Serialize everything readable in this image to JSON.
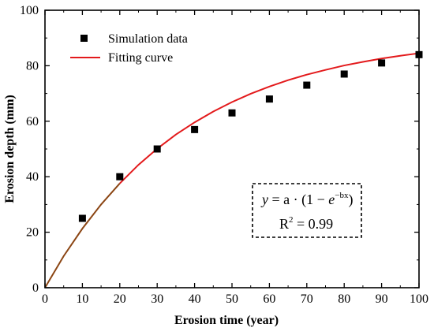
{
  "chart_data": {
    "type": "scatter",
    "xlabel": "Erosion time (year)",
    "ylabel": "Erosion depth (mm)",
    "xlim": [
      0,
      100
    ],
    "ylim": [
      0,
      100
    ],
    "x_ticks": [
      0,
      10,
      20,
      30,
      40,
      50,
      60,
      70,
      80,
      90,
      100
    ],
    "y_ticks": [
      0,
      20,
      40,
      60,
      80,
      100
    ],
    "grid": false,
    "legend_position": "top-left",
    "series": [
      {
        "name": "Simulation data",
        "kind": "scatter",
        "marker": "square",
        "color": "#000000",
        "x": [
          10,
          20,
          30,
          40,
          50,
          60,
          70,
          80,
          90,
          100
        ],
        "y": [
          25,
          40,
          50,
          57,
          63,
          68,
          73,
          77,
          81,
          84
        ]
      },
      {
        "name": "Fitting curve",
        "kind": "line",
        "color": "#e31a1c",
        "lower_segment_color": "#8b4513",
        "x": [
          0,
          5,
          10,
          15,
          20,
          25,
          30,
          35,
          40,
          45,
          50,
          55,
          60,
          65,
          70,
          75,
          80,
          85,
          90,
          95,
          100
        ],
        "y": [
          0,
          11.4,
          21.3,
          30.0,
          37.6,
          44.3,
          50.1,
          55.2,
          59.6,
          63.5,
          66.9,
          69.9,
          72.5,
          74.8,
          76.8,
          78.5,
          80.1,
          81.4,
          82.6,
          83.6,
          84.5
        ]
      }
    ],
    "annotation": {
      "equation_y": "y",
      "equation_eq": " = a · (1 − ",
      "equation_e": "e",
      "equation_exp": "−bx",
      "equation_close": ")",
      "r2_label": "R",
      "r2_sup": "2",
      "r2_value": " = 0.99"
    }
  }
}
